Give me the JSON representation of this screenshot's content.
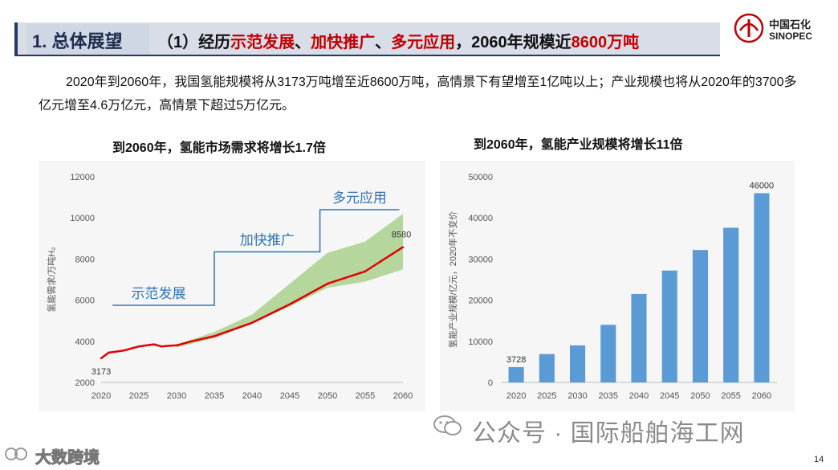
{
  "slide": {
    "title_main": "1. 总体展望",
    "title_sub_parts": [
      {
        "text": "（1）经历",
        "hl": false
      },
      {
        "text": "示范发展",
        "hl": true
      },
      {
        "text": "、",
        "hl": false
      },
      {
        "text": "加快推广",
        "hl": true
      },
      {
        "text": "、",
        "hl": false
      },
      {
        "text": "多元应用",
        "hl": true
      },
      {
        "text": "，2060年规模近",
        "hl": false
      },
      {
        "text": "8600万吨",
        "hl": true
      }
    ],
    "intro": "2020年到2060年，我国氢能规模将从3173万吨增至近8600万吨，高情景下有望增至1亿吨以上；产业规模也将从2020年的3700多亿元增至4.6万亿元，高情景下超过5万亿元。",
    "page_number": "14",
    "colors": {
      "highlight": "#c00000",
      "title_text": "#1d2c4f",
      "title_bg": "#d8dde8"
    }
  },
  "logo": {
    "cn": "中国石化",
    "en": "SINOPEC"
  },
  "watermarks": {
    "right": "公众号 · 国际船舶海工网",
    "left": "大数跨境"
  },
  "chart_data": [
    {
      "type": "line",
      "title": "到2060年，氢能市场需求将增长1.7倍",
      "ylabel": "氢能需求/万吨H₂",
      "xlabel": "",
      "xlim": [
        2020,
        2060
      ],
      "ylim": [
        2000,
        12000
      ],
      "xticks": [
        2020,
        2025,
        2030,
        2035,
        2040,
        2045,
        2050,
        2055,
        2060
      ],
      "yticks": [
        2000,
        4000,
        6000,
        8000,
        10000,
        12000
      ],
      "grid": false,
      "series": [
        {
          "name": "",
          "color": "#e00000",
          "x": [
            2020,
            2021,
            2022,
            2023,
            2024,
            2025,
            2026,
            2027,
            2028,
            2029,
            2030,
            2032,
            2035,
            2040,
            2045,
            2050,
            2055,
            2060
          ],
          "values": [
            3173,
            3450,
            3500,
            3550,
            3650,
            3750,
            3800,
            3850,
            3750,
            3780,
            3800,
            4000,
            4250,
            4900,
            5800,
            6800,
            7400,
            8580
          ]
        }
      ],
      "bands": [
        {
          "name": "",
          "color": "#a9d18e",
          "x": [
            2030,
            2035,
            2040,
            2045,
            2050,
            2055,
            2060
          ],
          "low": [
            3700,
            4150,
            4850,
            5700,
            6600,
            6900,
            7500
          ],
          "high": [
            3850,
            4450,
            5300,
            6800,
            8300,
            8850,
            10200
          ]
        }
      ],
      "annotations": [
        {
          "text": "3173",
          "x": 2020,
          "y": 3173
        },
        {
          "text": "8580",
          "x": 2060,
          "y": 8580
        }
      ],
      "phases": [
        {
          "label": "示范发展",
          "x_start": 2021.5,
          "x_end": 2035,
          "y": 5750
        },
        {
          "label": "加快推广",
          "x_start": 2035,
          "x_end": 2049,
          "y": 8350
        },
        {
          "label": "多元应用",
          "x_start": 2049,
          "x_end": 2059.5,
          "y": 10400
        }
      ]
    },
    {
      "type": "bar",
      "title": "到2060年，氢能产业规模将增长11倍",
      "ylabel": "氢能产业规模/亿元，2020年不变价",
      "xlabel": "",
      "categories": [
        "2020",
        "2025",
        "2030",
        "2035",
        "2040",
        "2045",
        "2050",
        "2055",
        "2060"
      ],
      "values": [
        3728,
        6900,
        9000,
        14000,
        21500,
        27200,
        32200,
        37600,
        46000
      ],
      "ylim": [
        0,
        50000
      ],
      "yticks": [
        0,
        10000,
        20000,
        30000,
        40000,
        50000
      ],
      "grid": false,
      "color": "#5b9bd5",
      "data_labels": [
        {
          "index": 0,
          "text": "3728"
        },
        {
          "index": 8,
          "text": "46000"
        }
      ]
    }
  ]
}
